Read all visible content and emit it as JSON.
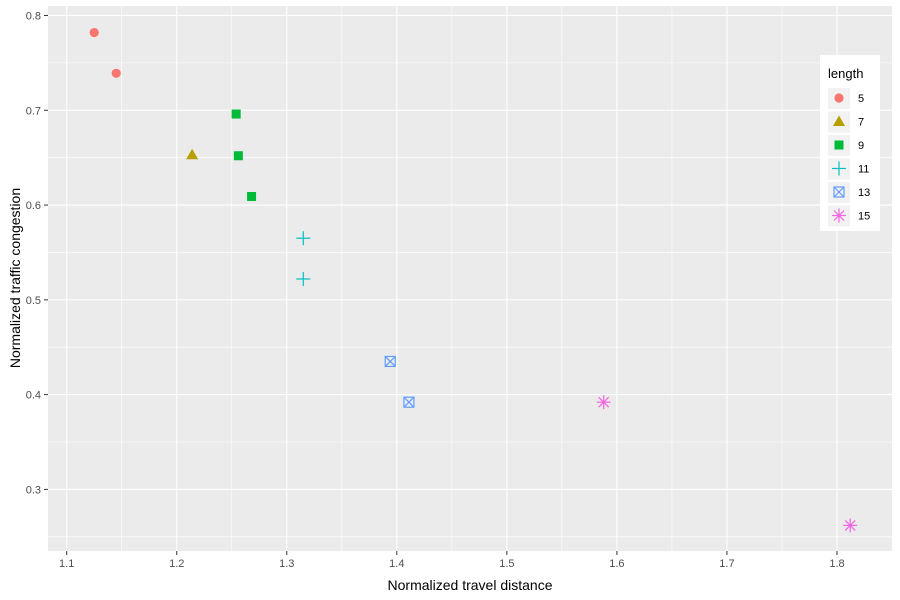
{
  "chart_data": {
    "type": "scatter",
    "title": "",
    "xlabel": "Normalized travel distance",
    "ylabel": "Normalized traffic congestion",
    "xlim": [
      1.083,
      1.85
    ],
    "ylim": [
      0.235,
      0.81
    ],
    "x_ticks": [
      1.1,
      1.2,
      1.3,
      1.4,
      1.5,
      1.6,
      1.7,
      1.8
    ],
    "x_tick_labels": [
      "1.1",
      "1.2",
      "1.3",
      "1.4",
      "1.5",
      "1.6",
      "1.7",
      "1.8"
    ],
    "y_ticks": [
      0.3,
      0.4,
      0.5,
      0.6,
      0.7,
      0.8
    ],
    "y_tick_labels": [
      "0.3",
      "0.4",
      "0.5",
      "0.6",
      "0.7",
      "0.8"
    ],
    "grid": true,
    "panel_background": "#ebebeb",
    "grid_color": "#ffffff",
    "legend": {
      "title": "length",
      "placement": "top-right inside"
    },
    "series": [
      {
        "name": "5",
        "color": "#F8766D",
        "shape": "circle",
        "points": [
          {
            "x": 1.125,
            "y": 0.782
          },
          {
            "x": 1.145,
            "y": 0.739
          }
        ]
      },
      {
        "name": "7",
        "color": "#B79F00",
        "shape": "triangle",
        "points": [
          {
            "x": 1.214,
            "y": 0.653
          }
        ]
      },
      {
        "name": "9",
        "color": "#00BA38",
        "shape": "square",
        "points": [
          {
            "x": 1.254,
            "y": 0.696
          },
          {
            "x": 1.256,
            "y": 0.652
          },
          {
            "x": 1.268,
            "y": 0.609
          }
        ]
      },
      {
        "name": "11",
        "color": "#00BFC4",
        "shape": "plus",
        "points": [
          {
            "x": 1.315,
            "y": 0.565
          },
          {
            "x": 1.315,
            "y": 0.522
          }
        ]
      },
      {
        "name": "13",
        "color": "#619CFF",
        "shape": "boxcross",
        "points": [
          {
            "x": 1.394,
            "y": 0.435
          },
          {
            "x": 1.411,
            "y": 0.392
          }
        ]
      },
      {
        "name": "15",
        "color": "#F564E3",
        "shape": "asterisk",
        "points": [
          {
            "x": 1.588,
            "y": 0.392
          },
          {
            "x": 1.812,
            "y": 0.262
          }
        ]
      }
    ]
  }
}
